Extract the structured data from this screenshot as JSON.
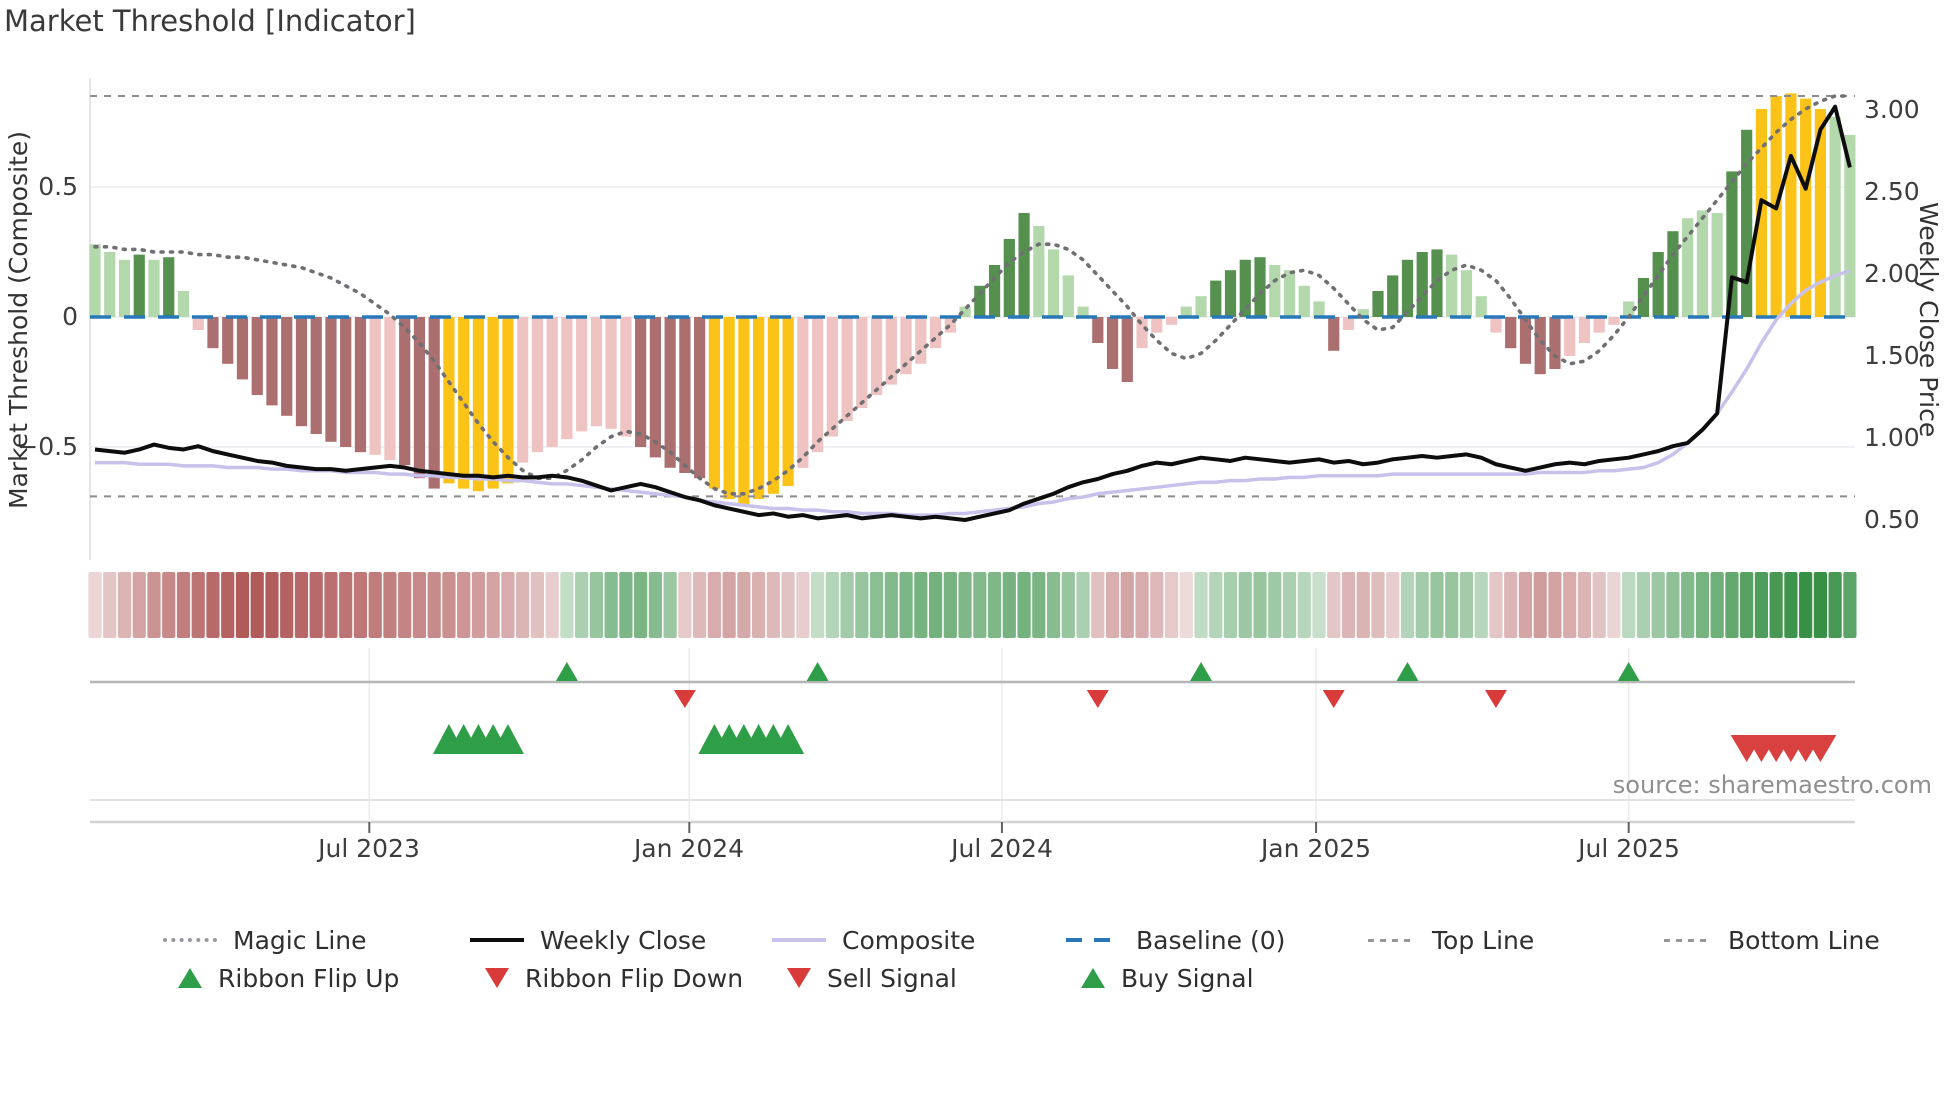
{
  "title": "Market Threshold [Indicator]",
  "source": "source: sharemaestro.com",
  "axes": {
    "left_label": "Market Threshold (Composite)",
    "right_label": "Weekly Close Price",
    "left_ticks": [
      {
        "v": 0.5,
        "label": "0.5"
      },
      {
        "v": 0.0,
        "label": "0"
      },
      {
        "v": -0.5,
        "label": "−0.5"
      }
    ],
    "right_ticks": [
      {
        "v": 3.0,
        "label": "3.00"
      },
      {
        "v": 2.5,
        "label": "2.50"
      },
      {
        "v": 2.0,
        "label": "2.00"
      },
      {
        "v": 1.5,
        "label": "1.50"
      },
      {
        "v": 1.0,
        "label": "1.00"
      },
      {
        "v": 0.5,
        "label": "0.50"
      }
    ],
    "x_ticks": [
      {
        "i": 18.6,
        "label": "Jul 2023"
      },
      {
        "i": 40.3,
        "label": "Jan 2024"
      },
      {
        "i": 61.5,
        "label": "Jul 2024"
      },
      {
        "i": 82.8,
        "label": "Jan 2025"
      },
      {
        "i": 104.0,
        "label": "Jul 2025"
      }
    ]
  },
  "legend": {
    "row1": [
      {
        "swatch": "magic",
        "label": "Magic Line"
      },
      {
        "swatch": "weekly",
        "label": "Weekly Close"
      },
      {
        "swatch": "composite",
        "label": "Composite"
      },
      {
        "swatch": "baseline",
        "label": "Baseline (0)"
      },
      {
        "swatch": "dash",
        "label": "Top Line"
      },
      {
        "swatch": "dash",
        "label": "Bottom Line"
      }
    ],
    "row2": [
      {
        "swatch": "tri-up",
        "label": "Ribbon Flip Up"
      },
      {
        "swatch": "tri-down",
        "label": "Ribbon Flip Down"
      },
      {
        "swatch": "tri-down",
        "label": "Sell Signal"
      },
      {
        "swatch": "tri-up",
        "label": "Buy Signal"
      }
    ]
  },
  "chart_data": {
    "type": "mixed",
    "n": 120,
    "thresholds": {
      "baseline": 0.0,
      "top_line": 0.85,
      "bottom_line": -0.69
    },
    "palette": {
      "lg": "#b3d8ac",
      "dg": "#55904f",
      "lp": "#eec3c2",
      "dr": "#ab6f6f",
      "y": "#fbc318",
      "weekly": "#0d0d0d",
      "composite_line": "#c8c1ec",
      "magic": "#6f6f74",
      "baseline": "#2878b8",
      "threshold": "#8c8c8c",
      "flip_up": "#2f9e48",
      "flip_down": "#d93a3a",
      "buy": "#2f9e48",
      "sell": "#d94040",
      "ribbon_red": "#b15a5a",
      "ribbon_green": "#389046"
    },
    "composite_bars": {
      "values": [
        0.28,
        0.25,
        0.22,
        0.24,
        0.22,
        0.23,
        0.1,
        -0.05,
        -0.12,
        -0.18,
        -0.24,
        -0.3,
        -0.34,
        -0.38,
        -0.42,
        -0.45,
        -0.48,
        -0.5,
        -0.52,
        -0.53,
        -0.55,
        -0.57,
        -0.62,
        -0.66,
        -0.64,
        -0.66,
        -0.67,
        -0.66,
        -0.64,
        -0.56,
        -0.52,
        -0.5,
        -0.47,
        -0.44,
        -0.42,
        -0.43,
        -0.46,
        -0.5,
        -0.54,
        -0.58,
        -0.6,
        -0.62,
        -0.66,
        -0.7,
        -0.72,
        -0.7,
        -0.68,
        -0.65,
        -0.58,
        -0.52,
        -0.46,
        -0.4,
        -0.35,
        -0.3,
        -0.26,
        -0.22,
        -0.18,
        -0.12,
        -0.06,
        0.04,
        0.12,
        0.2,
        0.3,
        0.4,
        0.35,
        0.26,
        0.16,
        0.04,
        -0.1,
        -0.2,
        -0.25,
        -0.12,
        -0.06,
        -0.03,
        0.04,
        0.08,
        0.14,
        0.18,
        0.22,
        0.23,
        0.2,
        0.18,
        0.12,
        0.06,
        -0.13,
        -0.05,
        0.03,
        0.1,
        0.16,
        0.22,
        0.25,
        0.26,
        0.24,
        0.18,
        0.08,
        -0.06,
        -0.12,
        -0.18,
        -0.22,
        -0.2,
        -0.15,
        -0.1,
        -0.06,
        -0.03,
        0.06,
        0.15,
        0.25,
        0.33,
        0.38,
        0.41,
        0.4,
        0.56,
        0.72,
        0.8,
        0.85,
        0.86,
        0.84,
        0.8,
        0.77,
        0.7
      ],
      "colors": [
        "lg",
        "lg",
        "lg",
        "dg",
        "lg",
        "dg",
        "lg",
        "lp",
        "dr",
        "dr",
        "dr",
        "dr",
        "dr",
        "dr",
        "dr",
        "dr",
        "dr",
        "dr",
        "dr",
        "lp",
        "lp",
        "dr",
        "dr",
        "dr",
        "y",
        "y",
        "y",
        "y",
        "y",
        "lp",
        "lp",
        "lp",
        "lp",
        "lp",
        "lp",
        "lp",
        "lp",
        "dr",
        "dr",
        "dr",
        "dr",
        "dr",
        "y",
        "y",
        "y",
        "y",
        "y",
        "y",
        "lp",
        "lp",
        "lp",
        "lp",
        "lp",
        "lp",
        "lp",
        "lp",
        "lp",
        "lp",
        "lp",
        "lg",
        "dg",
        "dg",
        "dg",
        "dg",
        "lg",
        "lg",
        "lg",
        "lg",
        "dr",
        "dr",
        "dr",
        "lp",
        "lp",
        "lp",
        "lg",
        "lg",
        "dg",
        "dg",
        "dg",
        "dg",
        "lg",
        "lg",
        "lg",
        "lg",
        "dr",
        "lp",
        "lg",
        "dg",
        "dg",
        "dg",
        "dg",
        "dg",
        "lg",
        "lg",
        "lg",
        "lp",
        "dr",
        "dr",
        "dr",
        "dr",
        "lp",
        "lp",
        "lp",
        "lp",
        "lg",
        "dg",
        "dg",
        "dg",
        "lg",
        "lg",
        "lg",
        "dg",
        "dg",
        "y",
        "y",
        "y",
        "y",
        "y",
        "lg",
        "lg"
      ]
    },
    "magic_line": [
      0.27,
      0.27,
      0.26,
      0.26,
      0.25,
      0.25,
      0.25,
      0.24,
      0.24,
      0.23,
      0.23,
      0.22,
      0.21,
      0.2,
      0.19,
      0.17,
      0.15,
      0.12,
      0.09,
      0.05,
      0.01,
      -0.04,
      -0.1,
      -0.17,
      -0.25,
      -0.33,
      -0.41,
      -0.48,
      -0.54,
      -0.59,
      -0.62,
      -0.62,
      -0.59,
      -0.55,
      -0.5,
      -0.46,
      -0.44,
      -0.45,
      -0.48,
      -0.52,
      -0.57,
      -0.62,
      -0.66,
      -0.68,
      -0.68,
      -0.66,
      -0.63,
      -0.59,
      -0.54,
      -0.48,
      -0.43,
      -0.38,
      -0.33,
      -0.28,
      -0.23,
      -0.18,
      -0.13,
      -0.08,
      -0.03,
      0.03,
      0.09,
      0.15,
      0.21,
      0.25,
      0.28,
      0.28,
      0.26,
      0.22,
      0.16,
      0.1,
      0.04,
      -0.03,
      -0.09,
      -0.14,
      -0.16,
      -0.14,
      -0.09,
      -0.03,
      0.03,
      0.09,
      0.14,
      0.17,
      0.18,
      0.16,
      0.11,
      0.05,
      -0.01,
      -0.05,
      -0.04,
      0.02,
      0.08,
      0.14,
      0.18,
      0.2,
      0.18,
      0.14,
      0.07,
      -0.01,
      -0.09,
      -0.15,
      -0.18,
      -0.17,
      -0.13,
      -0.07,
      0.0,
      0.08,
      0.16,
      0.24,
      0.31,
      0.38,
      0.45,
      0.52,
      0.59,
      0.65,
      0.71,
      0.76,
      0.8,
      0.83,
      0.85,
      0.85
    ],
    "weekly_close": [
      0.93,
      0.92,
      0.91,
      0.93,
      0.96,
      0.94,
      0.93,
      0.95,
      0.92,
      0.9,
      0.88,
      0.86,
      0.85,
      0.83,
      0.82,
      0.81,
      0.81,
      0.8,
      0.81,
      0.82,
      0.83,
      0.82,
      0.8,
      0.79,
      0.78,
      0.77,
      0.77,
      0.76,
      0.77,
      0.76,
      0.76,
      0.77,
      0.76,
      0.74,
      0.71,
      0.68,
      0.7,
      0.72,
      0.7,
      0.67,
      0.64,
      0.62,
      0.59,
      0.57,
      0.55,
      0.53,
      0.54,
      0.52,
      0.53,
      0.51,
      0.52,
      0.53,
      0.51,
      0.52,
      0.53,
      0.52,
      0.51,
      0.52,
      0.51,
      0.5,
      0.52,
      0.54,
      0.56,
      0.6,
      0.63,
      0.66,
      0.7,
      0.73,
      0.75,
      0.78,
      0.8,
      0.83,
      0.85,
      0.84,
      0.86,
      0.88,
      0.87,
      0.86,
      0.88,
      0.87,
      0.86,
      0.85,
      0.86,
      0.87,
      0.85,
      0.86,
      0.84,
      0.85,
      0.87,
      0.88,
      0.89,
      0.88,
      0.89,
      0.9,
      0.88,
      0.84,
      0.82,
      0.8,
      0.82,
      0.84,
      0.85,
      0.84,
      0.86,
      0.87,
      0.88,
      0.9,
      0.92,
      0.95,
      0.97,
      1.05,
      1.15,
      1.98,
      1.95,
      2.45,
      2.4,
      2.72,
      2.52,
      2.88,
      3.02,
      2.65
    ],
    "composite_price_line": [
      0.85,
      0.85,
      0.85,
      0.84,
      0.84,
      0.84,
      0.83,
      0.83,
      0.83,
      0.82,
      0.82,
      0.82,
      0.81,
      0.81,
      0.8,
      0.8,
      0.8,
      0.79,
      0.79,
      0.79,
      0.78,
      0.78,
      0.77,
      0.77,
      0.76,
      0.76,
      0.75,
      0.75,
      0.74,
      0.74,
      0.73,
      0.72,
      0.72,
      0.71,
      0.7,
      0.69,
      0.68,
      0.67,
      0.66,
      0.65,
      0.64,
      0.62,
      0.61,
      0.6,
      0.59,
      0.58,
      0.57,
      0.57,
      0.56,
      0.56,
      0.55,
      0.55,
      0.54,
      0.54,
      0.54,
      0.53,
      0.53,
      0.53,
      0.54,
      0.54,
      0.55,
      0.56,
      0.57,
      0.58,
      0.6,
      0.61,
      0.63,
      0.64,
      0.66,
      0.67,
      0.68,
      0.69,
      0.7,
      0.71,
      0.72,
      0.73,
      0.73,
      0.74,
      0.74,
      0.75,
      0.75,
      0.76,
      0.76,
      0.77,
      0.77,
      0.77,
      0.77,
      0.77,
      0.78,
      0.78,
      0.78,
      0.78,
      0.78,
      0.78,
      0.78,
      0.78,
      0.78,
      0.78,
      0.79,
      0.79,
      0.79,
      0.79,
      0.8,
      0.8,
      0.81,
      0.82,
      0.85,
      0.9,
      0.97,
      1.05,
      1.15,
      1.28,
      1.42,
      1.58,
      1.72,
      1.82,
      1.9,
      1.95,
      1.99,
      2.02
    ],
    "ribbon": [
      -0.25,
      -0.35,
      -0.45,
      -0.55,
      -0.65,
      -0.72,
      -0.78,
      -0.84,
      -0.9,
      -0.95,
      -1.0,
      -1.0,
      -0.98,
      -0.95,
      -0.92,
      -0.9,
      -0.87,
      -0.84,
      -0.82,
      -0.8,
      -0.77,
      -0.74,
      -0.72,
      -0.7,
      -0.67,
      -0.64,
      -0.6,
      -0.55,
      -0.5,
      -0.45,
      -0.38,
      -0.3,
      0.3,
      0.42,
      0.52,
      0.6,
      0.65,
      0.66,
      0.6,
      0.5,
      -0.32,
      -0.42,
      -0.5,
      -0.54,
      -0.52,
      -0.47,
      -0.42,
      -0.36,
      -0.3,
      0.3,
      0.38,
      0.46,
      0.52,
      0.58,
      0.62,
      0.65,
      0.68,
      0.7,
      0.68,
      0.64,
      0.62,
      0.64,
      0.68,
      0.7,
      0.66,
      0.6,
      0.52,
      0.42,
      -0.38,
      -0.48,
      -0.54,
      -0.5,
      -0.42,
      -0.32,
      -0.22,
      0.32,
      0.38,
      0.44,
      0.5,
      0.52,
      0.48,
      0.42,
      0.36,
      0.28,
      -0.34,
      -0.44,
      -0.46,
      -0.4,
      -0.3,
      0.38,
      0.46,
      0.52,
      0.52,
      0.46,
      0.36,
      -0.34,
      -0.44,
      -0.54,
      -0.6,
      -0.56,
      -0.5,
      -0.44,
      -0.36,
      -0.26,
      0.34,
      0.42,
      0.5,
      0.56,
      0.62,
      0.68,
      0.72,
      0.78,
      0.84,
      0.88,
      0.92,
      0.96,
      1.0,
      1.0,
      0.92,
      0.82
    ],
    "signals": {
      "flip_up": [
        32,
        49,
        75,
        89,
        104
      ],
      "flip_down": [
        40,
        68,
        84,
        95
      ],
      "buy": [
        24,
        25,
        26,
        27,
        28,
        42,
        43,
        44,
        45,
        46,
        47
      ],
      "sell": [
        112,
        113,
        114,
        115,
        116,
        117
      ]
    }
  }
}
